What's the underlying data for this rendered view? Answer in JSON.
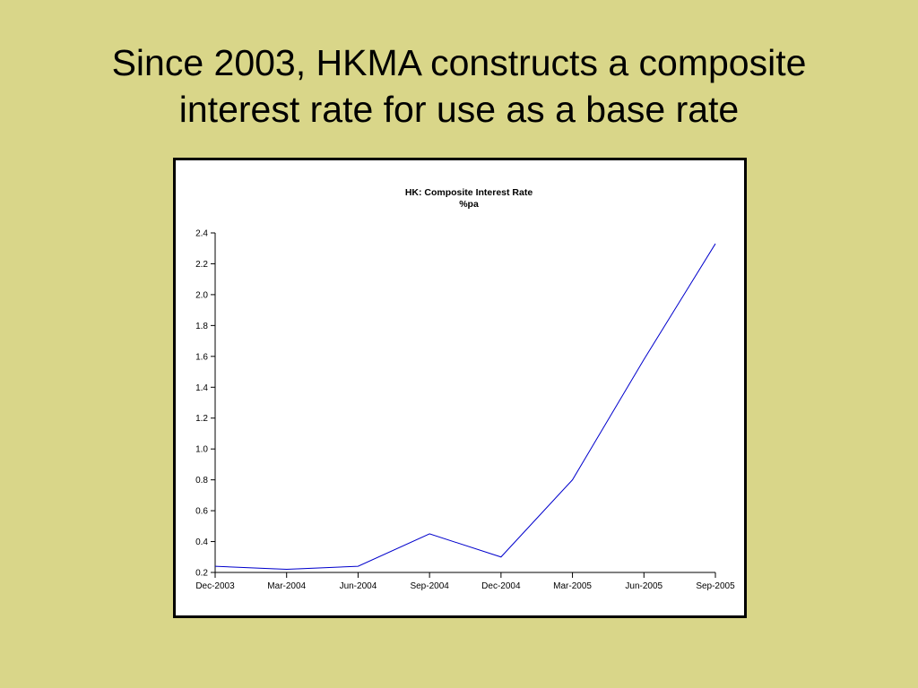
{
  "slide": {
    "title_line1": "Since 2003, HKMA constructs a composite",
    "title_line2": "interest rate for use as a base rate"
  },
  "chart_data": {
    "type": "line",
    "title": "HK: Composite Interest Rate",
    "subtitle": "%pa",
    "x": [
      "Dec-2003",
      "Mar-2004",
      "Jun-2004",
      "Sep-2004",
      "Dec-2004",
      "Mar-2005",
      "Jun-2005",
      "Sep-2005"
    ],
    "series": [
      {
        "values": [
          0.24,
          0.22,
          0.24,
          0.45,
          0.3,
          0.8,
          1.58,
          2.33
        ],
        "color": "#0000cc"
      }
    ],
    "ylim": [
      0.2,
      2.4
    ],
    "yticks": [
      "0.2",
      "0.4",
      "0.6",
      "0.8",
      "1.0",
      "1.2",
      "1.4",
      "1.6",
      "1.8",
      "2.0",
      "2.2",
      "2.4"
    ],
    "xlabel": "",
    "ylabel": "",
    "grid": false,
    "legend": "none"
  }
}
